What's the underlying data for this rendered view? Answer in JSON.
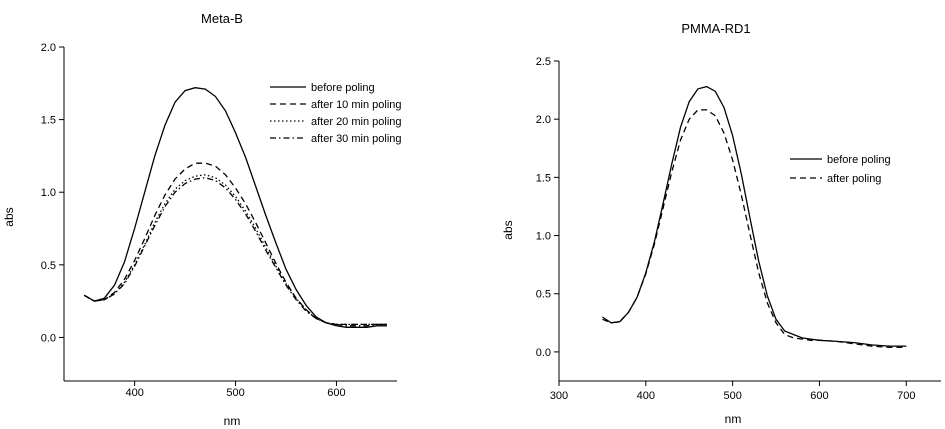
{
  "chart_data": [
    {
      "type": "line",
      "title": "Meta-B",
      "xlabel": "nm",
      "ylabel": "abs",
      "xlim": [
        330,
        660
      ],
      "ylim": [
        -0.3,
        2.0
      ],
      "xticks": [
        400,
        500,
        600
      ],
      "yticks": [
        0.0,
        0.5,
        1.0,
        1.5,
        2.0
      ],
      "xtick_labels": [
        "400",
        "500",
        "600"
      ],
      "ytick_labels": [
        "0.0",
        "0.5",
        "1.0",
        "1.5",
        "2.0"
      ],
      "legend_position": "top-right",
      "grid": false,
      "series": [
        {
          "name": "before poling",
          "dash": "solid",
          "x": [
            350,
            360,
            370,
            380,
            390,
            400,
            410,
            420,
            430,
            440,
            450,
            460,
            470,
            480,
            490,
            500,
            510,
            520,
            530,
            540,
            550,
            560,
            570,
            580,
            590,
            600,
            610,
            620,
            630,
            640,
            650
          ],
          "y": [
            0.29,
            0.25,
            0.27,
            0.36,
            0.52,
            0.75,
            1.0,
            1.25,
            1.46,
            1.62,
            1.7,
            1.72,
            1.71,
            1.66,
            1.56,
            1.41,
            1.24,
            1.04,
            0.84,
            0.65,
            0.47,
            0.33,
            0.22,
            0.14,
            0.1,
            0.08,
            0.07,
            0.07,
            0.07,
            0.08,
            0.08
          ]
        },
        {
          "name": "after 10 min poling",
          "dash": "dashed",
          "x": [
            350,
            360,
            370,
            380,
            390,
            400,
            410,
            420,
            430,
            440,
            450,
            460,
            470,
            480,
            490,
            500,
            510,
            520,
            530,
            540,
            550,
            560,
            570,
            580,
            590,
            600,
            610,
            620,
            630,
            640,
            650
          ],
          "y": [
            0.29,
            0.25,
            0.26,
            0.31,
            0.4,
            0.53,
            0.68,
            0.84,
            0.98,
            1.09,
            1.16,
            1.2,
            1.2,
            1.18,
            1.12,
            1.03,
            0.92,
            0.79,
            0.65,
            0.51,
            0.38,
            0.27,
            0.19,
            0.13,
            0.1,
            0.09,
            0.09,
            0.09,
            0.09,
            0.09,
            0.09
          ]
        },
        {
          "name": "after 20 min poling",
          "dash": "dotted",
          "x": [
            350,
            360,
            370,
            380,
            390,
            400,
            410,
            420,
            430,
            440,
            450,
            460,
            470,
            480,
            490,
            500,
            510,
            520,
            530,
            540,
            550,
            560,
            570,
            580,
            590,
            600,
            610,
            620,
            630,
            640,
            650
          ],
          "y": [
            0.29,
            0.25,
            0.26,
            0.3,
            0.38,
            0.5,
            0.64,
            0.79,
            0.92,
            1.02,
            1.08,
            1.11,
            1.12,
            1.1,
            1.05,
            0.97,
            0.87,
            0.75,
            0.62,
            0.49,
            0.37,
            0.27,
            0.19,
            0.13,
            0.1,
            0.09,
            0.09,
            0.09,
            0.09,
            0.09,
            0.09
          ]
        },
        {
          "name": "after 30 min poling",
          "dash": "dashdot",
          "x": [
            350,
            360,
            370,
            380,
            390,
            400,
            410,
            420,
            430,
            440,
            450,
            460,
            470,
            480,
            490,
            500,
            510,
            520,
            530,
            540,
            550,
            560,
            570,
            580,
            590,
            600,
            610,
            620,
            630,
            640,
            650
          ],
          "y": [
            0.29,
            0.25,
            0.26,
            0.3,
            0.37,
            0.49,
            0.63,
            0.77,
            0.9,
            1.0,
            1.06,
            1.09,
            1.1,
            1.08,
            1.03,
            0.95,
            0.85,
            0.73,
            0.6,
            0.48,
            0.36,
            0.26,
            0.18,
            0.13,
            0.1,
            0.09,
            0.08,
            0.08,
            0.08,
            0.09,
            0.09
          ]
        }
      ]
    },
    {
      "type": "line",
      "title": "PMMA-RD1",
      "xlabel": "nm",
      "ylabel": "abs",
      "xlim": [
        300,
        740
      ],
      "ylim": [
        -0.25,
        2.5
      ],
      "xticks": [
        300,
        400,
        500,
        600,
        700
      ],
      "yticks": [
        0.0,
        0.5,
        1.0,
        1.5,
        2.0,
        2.5
      ],
      "xtick_labels": [
        "300",
        "400",
        "500",
        "600",
        "700"
      ],
      "ytick_labels": [
        "0.0",
        "0.5",
        "1.0",
        "1.5",
        "2.0",
        "2.5"
      ],
      "legend_position": "right",
      "grid": false,
      "series": [
        {
          "name": "before poling",
          "dash": "solid",
          "x": [
            350,
            360,
            370,
            380,
            390,
            400,
            410,
            420,
            430,
            440,
            450,
            460,
            470,
            480,
            490,
            500,
            510,
            520,
            530,
            540,
            550,
            560,
            570,
            580,
            590,
            600,
            620,
            640,
            660,
            680,
            700
          ],
          "y": [
            0.3,
            0.25,
            0.26,
            0.34,
            0.47,
            0.68,
            0.95,
            1.28,
            1.62,
            1.93,
            2.15,
            2.26,
            2.28,
            2.24,
            2.1,
            1.86,
            1.53,
            1.15,
            0.78,
            0.48,
            0.28,
            0.18,
            0.15,
            0.12,
            0.11,
            0.1,
            0.09,
            0.08,
            0.06,
            0.05,
            0.05
          ]
        },
        {
          "name": "after poling",
          "dash": "dashed",
          "x": [
            350,
            360,
            370,
            380,
            390,
            400,
            410,
            420,
            430,
            440,
            450,
            460,
            470,
            480,
            490,
            500,
            510,
            520,
            530,
            540,
            550,
            560,
            570,
            580,
            590,
            600,
            620,
            640,
            660,
            680,
            700
          ],
          "y": [
            0.28,
            0.25,
            0.26,
            0.34,
            0.47,
            0.67,
            0.93,
            1.24,
            1.55,
            1.82,
            2.0,
            2.08,
            2.08,
            2.03,
            1.88,
            1.65,
            1.35,
            1.01,
            0.68,
            0.42,
            0.25,
            0.15,
            0.12,
            0.11,
            0.1,
            0.1,
            0.09,
            0.07,
            0.05,
            0.04,
            0.04
          ]
        }
      ]
    }
  ]
}
